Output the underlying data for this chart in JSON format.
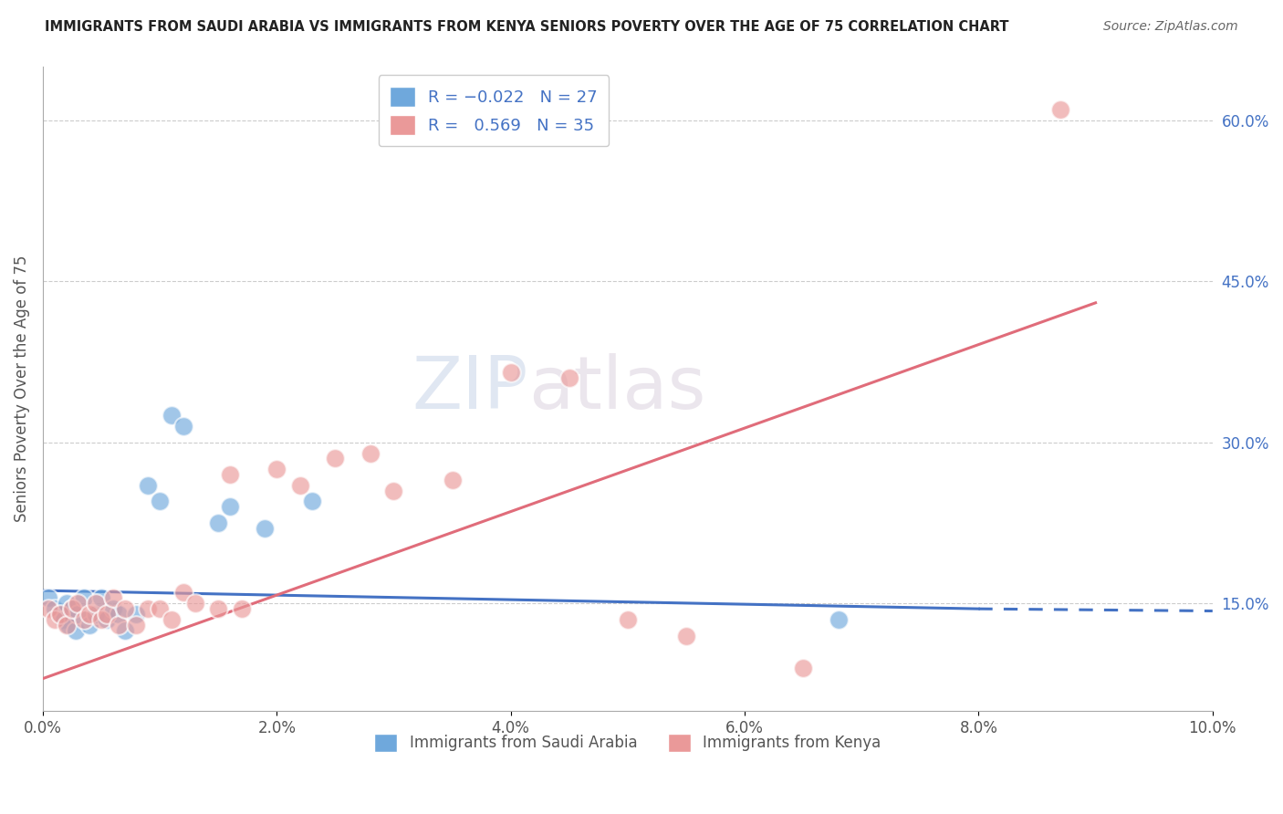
{
  "title": "IMMIGRANTS FROM SAUDI ARABIA VS IMMIGRANTS FROM KENYA SENIORS POVERTY OVER THE AGE OF 75 CORRELATION CHART",
  "source": "Source: ZipAtlas.com",
  "ylabel": "Seniors Poverty Over the Age of 75",
  "xlabel_ticks": [
    "0.0%",
    "2.0%",
    "4.0%",
    "6.0%",
    "8.0%",
    "10.0%"
  ],
  "xlabel_vals": [
    0.0,
    2.0,
    4.0,
    6.0,
    8.0,
    10.0
  ],
  "ylabel_ticks_right": [
    "15.0%",
    "30.0%",
    "45.0%",
    "60.0%"
  ],
  "ylabel_vals_right": [
    15.0,
    30.0,
    45.0,
    60.0
  ],
  "xlim": [
    0.0,
    10.0
  ],
  "ylim": [
    5.0,
    65.0
  ],
  "saudi_color": "#6fa8dc",
  "kenya_color": "#ea9999",
  "saudi_line_color": "#4472c4",
  "kenya_line_color": "#e06c7a",
  "background_color": "#ffffff",
  "watermark_zip": "ZIP",
  "watermark_atlas": "atlas",
  "saudi_x": [
    0.05,
    0.1,
    0.15,
    0.18,
    0.2,
    0.22,
    0.25,
    0.28,
    0.3,
    0.35,
    0.4,
    0.45,
    0.5,
    0.55,
    0.6,
    0.65,
    0.7,
    0.8,
    0.9,
    1.0,
    1.1,
    1.2,
    1.5,
    1.6,
    1.9,
    2.3,
    6.8
  ],
  "saudi_y": [
    15.5,
    14.5,
    14.0,
    13.5,
    15.0,
    13.0,
    14.5,
    12.5,
    14.0,
    15.5,
    13.0,
    14.0,
    15.5,
    13.5,
    14.5,
    14.0,
    12.5,
    14.0,
    26.0,
    24.5,
    32.5,
    31.5,
    22.5,
    24.0,
    22.0,
    24.5,
    13.5
  ],
  "kenya_x": [
    0.05,
    0.1,
    0.15,
    0.2,
    0.25,
    0.3,
    0.35,
    0.4,
    0.45,
    0.5,
    0.55,
    0.6,
    0.65,
    0.7,
    0.8,
    0.9,
    1.0,
    1.1,
    1.2,
    1.3,
    1.5,
    1.6,
    1.7,
    2.0,
    2.2,
    2.5,
    2.8,
    3.0,
    3.5,
    4.0,
    4.5,
    5.0,
    5.5,
    6.5,
    8.7
  ],
  "kenya_y": [
    14.5,
    13.5,
    14.0,
    13.0,
    14.5,
    15.0,
    13.5,
    14.0,
    15.0,
    13.5,
    14.0,
    15.5,
    13.0,
    14.5,
    13.0,
    14.5,
    14.5,
    13.5,
    16.0,
    15.0,
    14.5,
    27.0,
    14.5,
    27.5,
    26.0,
    28.5,
    29.0,
    25.5,
    26.5,
    36.5,
    36.0,
    13.5,
    12.0,
    9.0,
    61.0
  ],
  "saudi_line_x0": 0.0,
  "saudi_line_y0": 16.2,
  "saudi_line_x1": 8.0,
  "saudi_line_y1": 14.5,
  "saudi_dash_x0": 8.0,
  "saudi_dash_y0": 14.5,
  "saudi_dash_x1": 10.0,
  "saudi_dash_y1": 14.3,
  "kenya_line_x0": 0.0,
  "kenya_line_y0": 8.0,
  "kenya_line_x1": 9.0,
  "kenya_line_y1": 43.0
}
